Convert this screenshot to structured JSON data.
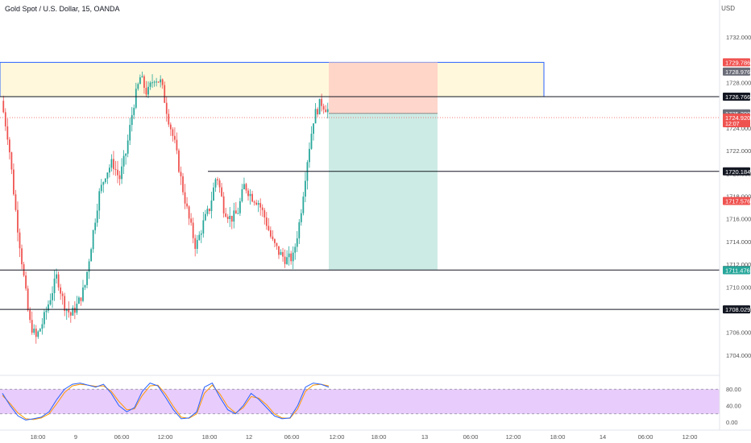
{
  "header": {
    "title": "Gold Spot / U.S. Dollar, 15, OANDA",
    "currency": "USD"
  },
  "colors": {
    "up": "#26a69a",
    "down": "#ef5350",
    "axis_text": "#555555",
    "resistance_zone_fill": "#fff8dc",
    "resistance_zone_border": "#2962ff",
    "stop_zone_fill": "#ffd2c5",
    "target_zone_fill": "#cdebe5",
    "stoch_band_fill": "#e8ccfb",
    "stoch_k": "#2962ff",
    "stoch_d": "#ff9800"
  },
  "chart_data": {
    "type": "candlestick",
    "ylim": [
      1703,
      1734
    ],
    "y_ticks": [
      "1704.000",
      "1706.000",
      "1708.000",
      "1710.000",
      "1712.000",
      "1714.000",
      "1716.000",
      "1718.000",
      "1720.000",
      "1722.000",
      "1724.000",
      "1728.000",
      "1732.000"
    ],
    "x_ticks": [
      "18:00",
      "9",
      "06:00",
      "12:00",
      "18:00",
      "12",
      "06:00",
      "12:00",
      "18:00",
      "13",
      "06:00",
      "12:00",
      "18:00",
      "14",
      "06:00",
      "12:00"
    ],
    "close_path": [
      1726.4,
      1723,
      1717,
      1712,
      1707,
      1705.5,
      1707,
      1709,
      1711,
      1708.5,
      1707.5,
      1708.5,
      1710,
      1714,
      1718,
      1720,
      1721,
      1719.5,
      1722,
      1726,
      1728.5,
      1727,
      1728.5,
      1728,
      1725,
      1722.5,
      1719,
      1716,
      1713.5,
      1715.5,
      1717,
      1720,
      1717,
      1716,
      1716.5,
      1719,
      1718,
      1717.5,
      1716,
      1714,
      1713,
      1712.4,
      1712.6,
      1716,
      1721,
      1725,
      1726.3,
      1725.6
    ],
    "prices_labels": [
      {
        "value": 1729.786,
        "label": "1729.786",
        "kind": "red"
      },
      {
        "value": 1728.976,
        "label": "1728.976",
        "kind": "gray"
      },
      {
        "value": 1726.766,
        "label": "1726.766",
        "kind": "black"
      },
      {
        "value": 1725.29,
        "label": "1725.290",
        "kind": "gray"
      },
      {
        "value": 1724.92,
        "label": "1724.920",
        "kind": "red",
        "sub": "12:07"
      },
      {
        "value": 1720.184,
        "label": "1720.184",
        "kind": "black"
      },
      {
        "value": 1717.576,
        "label": "1717.576",
        "kind": "red"
      },
      {
        "value": 1711.496,
        "label": "1711.496",
        "kind": "black"
      },
      {
        "value": 1711.476,
        "label": "1711.476",
        "kind": "green"
      },
      {
        "value": 1708.029,
        "label": "1708.029",
        "kind": "black"
      }
    ],
    "horizontal_levels": [
      1726.766,
      1720.184,
      1711.496,
      1708.029
    ],
    "resistance_zone": [
      1726.766,
      1729.786
    ],
    "position": {
      "entry": 1725.29,
      "stop": 1729.786,
      "target": 1711.496
    },
    "current_price": 1724.92,
    "oscillator": {
      "type": "stochastic",
      "y_ticks": [
        "80.00",
        "40.00",
        "0.00"
      ],
      "band": [
        20,
        80
      ],
      "k_path": [
        70,
        40,
        15,
        5,
        8,
        12,
        25,
        55,
        80,
        92,
        95,
        90,
        85,
        92,
        70,
        40,
        25,
        35,
        75,
        95,
        88,
        60,
        30,
        8,
        10,
        25,
        85,
        95,
        60,
        30,
        20,
        40,
        70,
        55,
        35,
        15,
        8,
        10,
        40,
        85,
        95,
        92,
        85
      ],
      "d_path": [
        65,
        45,
        22,
        8,
        6,
        10,
        20,
        45,
        72,
        88,
        92,
        90,
        87,
        88,
        75,
        50,
        30,
        32,
        65,
        88,
        90,
        68,
        38,
        12,
        9,
        20,
        70,
        90,
        68,
        38,
        22,
        35,
        62,
        58,
        42,
        20,
        10,
        9,
        32,
        75,
        90,
        92,
        88
      ]
    }
  }
}
